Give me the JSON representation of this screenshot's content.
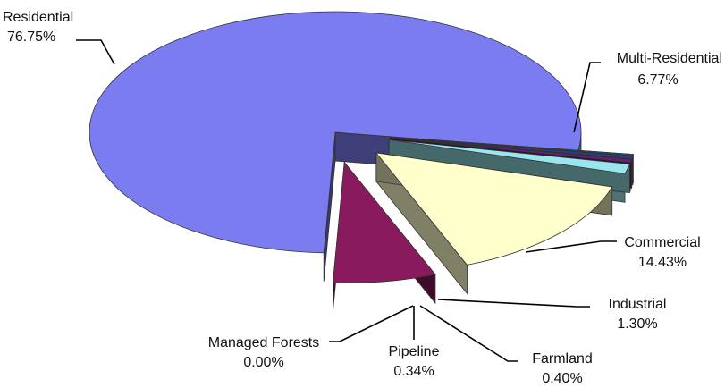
{
  "chart_data": {
    "type": "pie",
    "style": "3d-exploded",
    "legend": "none",
    "slices": [
      {
        "name": "Residential",
        "value": 76.75,
        "label": "76.75%",
        "color": "#7b7cf0"
      },
      {
        "name": "Multi-Residential",
        "value": 6.77,
        "label": "6.77%",
        "color": "#8a1a5e"
      },
      {
        "name": "Commercial",
        "value": 14.43,
        "label": "14.43%",
        "color": "#ffffcc"
      },
      {
        "name": "Industrial",
        "value": 1.3,
        "label": "1.30%",
        "color": "#99e6ee"
      },
      {
        "name": "Farmland",
        "value": 0.4,
        "label": "0.40%",
        "color": "#6b1d7a"
      },
      {
        "name": "Pipeline",
        "value": 0.34,
        "label": "0.34%",
        "color": "#2a3f8a"
      },
      {
        "name": "Managed Forests",
        "value": 0.0,
        "label": "0.00%",
        "color": "#0c5a78"
      }
    ]
  }
}
